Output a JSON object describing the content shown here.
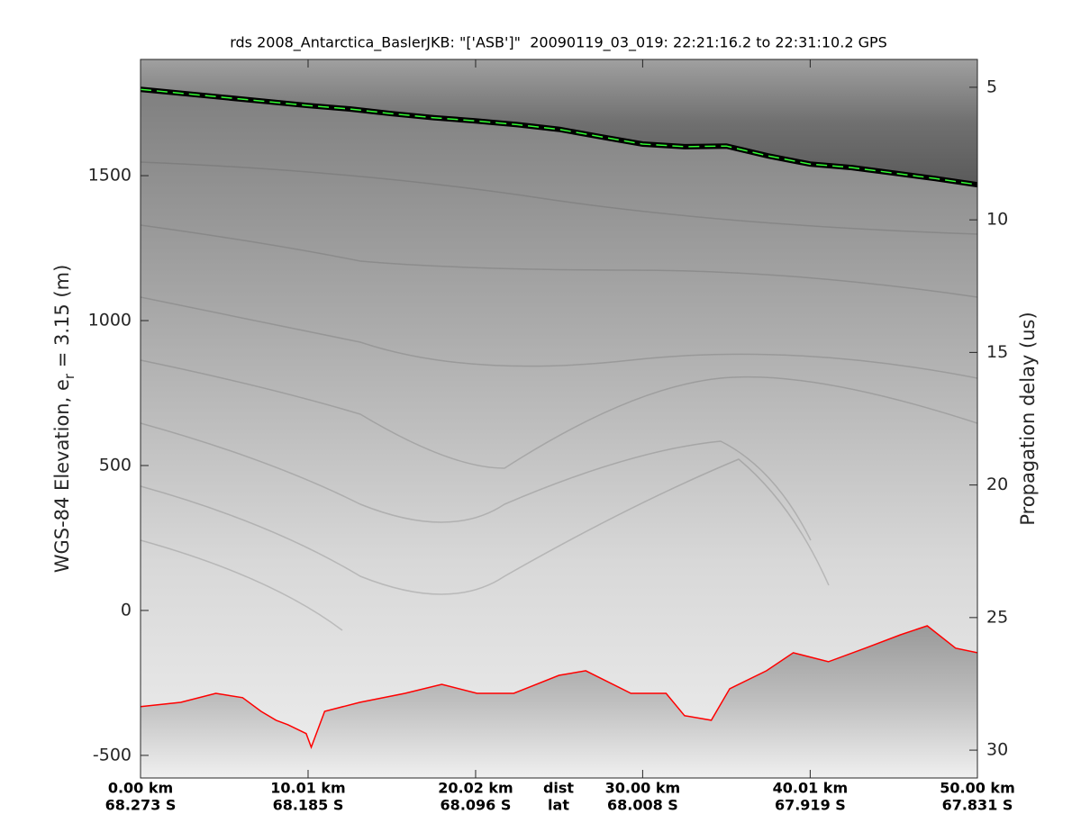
{
  "chart_data": {
    "type": "line",
    "title": "rds 2008_Antarctica_BaslerJKB: \"['ASB']\"  20090119_03_019: 22:21:16.2 to 22:31:10.2 GPS",
    "ylabel_main": "WGS-84 Elevation, e",
    "ylabel_sub": "r",
    "ylabel_tail": " = 3.15 (m)",
    "y2label": "Propagation delay (us)",
    "x_label": "dist",
    "x2_label": "lat",
    "xlim": [
      0,
      50
    ],
    "xticks": [
      {
        "value": 0,
        "label": "0.00 km"
      },
      {
        "value": 10.01,
        "label": "10.01 km"
      },
      {
        "value": 20.02,
        "label": "20.02 km"
      },
      {
        "value": 30.0,
        "label": "30.00 km"
      },
      {
        "value": 40.01,
        "label": "40.01 km"
      },
      {
        "value": 50.0,
        "label": "50.00 km"
      }
    ],
    "xtick_lat": [
      "68.273 S",
      "68.185 S",
      "68.096 S",
      "68.008 S",
      "67.919 S",
      "67.831 S"
    ],
    "ylim": [
      -578,
      1901
    ],
    "yticks": [
      -500,
      0,
      500,
      1000,
      1500
    ],
    "y2lim": [
      31.05,
      3.95
    ],
    "y2ticks": [
      5,
      10,
      15,
      20,
      25,
      30
    ],
    "series": [
      {
        "name": "surface",
        "color": "#33ff33",
        "dashed": true,
        "x": [
          0,
          2.5,
          5,
          7.5,
          10,
          12.5,
          15,
          17.5,
          20,
          22.5,
          25,
          27.5,
          30,
          32.5,
          35,
          37.5,
          40,
          42.5,
          45,
          47.5,
          50
        ],
        "values": [
          1798,
          1784,
          1770,
          1756,
          1742,
          1730,
          1714,
          1700,
          1689,
          1676,
          1660,
          1634,
          1609,
          1600,
          1602,
          1568,
          1540,
          1528,
          1509,
          1490,
          1469
        ]
      },
      {
        "name": "bed",
        "color": "#ff0000",
        "dashed": false,
        "x": [
          0,
          2.4,
          4.5,
          6.1,
          7.2,
          8.1,
          8.8,
          9.9,
          10.2,
          11,
          13.1,
          15.8,
          18,
          20.1,
          22.3,
          25,
          26.6,
          29.3,
          31.4,
          32.5,
          34.1,
          35.2,
          37.4,
          39,
          41.1,
          43.3,
          45.4,
          47,
          48.7,
          50
        ],
        "values": [
          -332,
          -317,
          -286,
          -301,
          -348,
          -379,
          -394,
          -425,
          -472,
          -348,
          -317,
          -286,
          -255,
          -286,
          -286,
          -224,
          -208,
          -286,
          -286,
          -363,
          -379,
          -270,
          -208,
          -146,
          -177,
          -130,
          -84,
          -53,
          -130,
          -146
        ]
      }
    ]
  }
}
